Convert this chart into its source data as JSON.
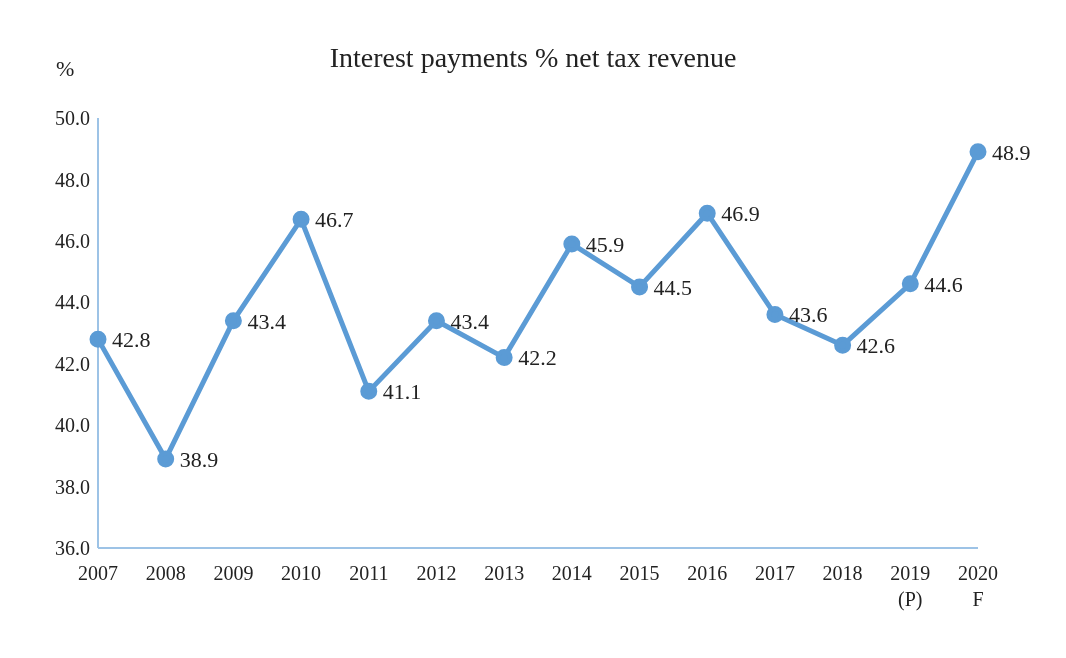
{
  "chart_data": {
    "type": "line",
    "title": "Interest payments % net tax revenue",
    "ylabel": "%",
    "categories": [
      "2007",
      "2008",
      "2009",
      "2010",
      "2011",
      "2012",
      "2013",
      "2014",
      "2015",
      "2016",
      "2017",
      "2018",
      "2019\n(P)",
      "2020\nF"
    ],
    "series": [
      {
        "color": "#5b9bd5",
        "values": [
          42.8,
          38.9,
          43.4,
          46.7,
          41.1,
          43.4,
          42.2,
          45.9,
          44.5,
          46.9,
          43.6,
          42.6,
          44.6,
          48.9
        ]
      }
    ],
    "ylim": [
      36,
      50
    ],
    "yticks": [
      {
        "value": 36,
        "label": "36.0"
      },
      {
        "value": 38,
        "label": "38.0"
      },
      {
        "value": 40,
        "label": "40.0"
      },
      {
        "value": 42,
        "label": "42.0"
      },
      {
        "value": 44,
        "label": "44.0"
      },
      {
        "value": 46,
        "label": "46.0"
      },
      {
        "value": 48,
        "label": "48.0"
      },
      {
        "value": 50,
        "label": "50.0"
      }
    ],
    "data_labels": true,
    "marker": "circle",
    "line_style": "solid",
    "grid": false,
    "legend": false
  }
}
